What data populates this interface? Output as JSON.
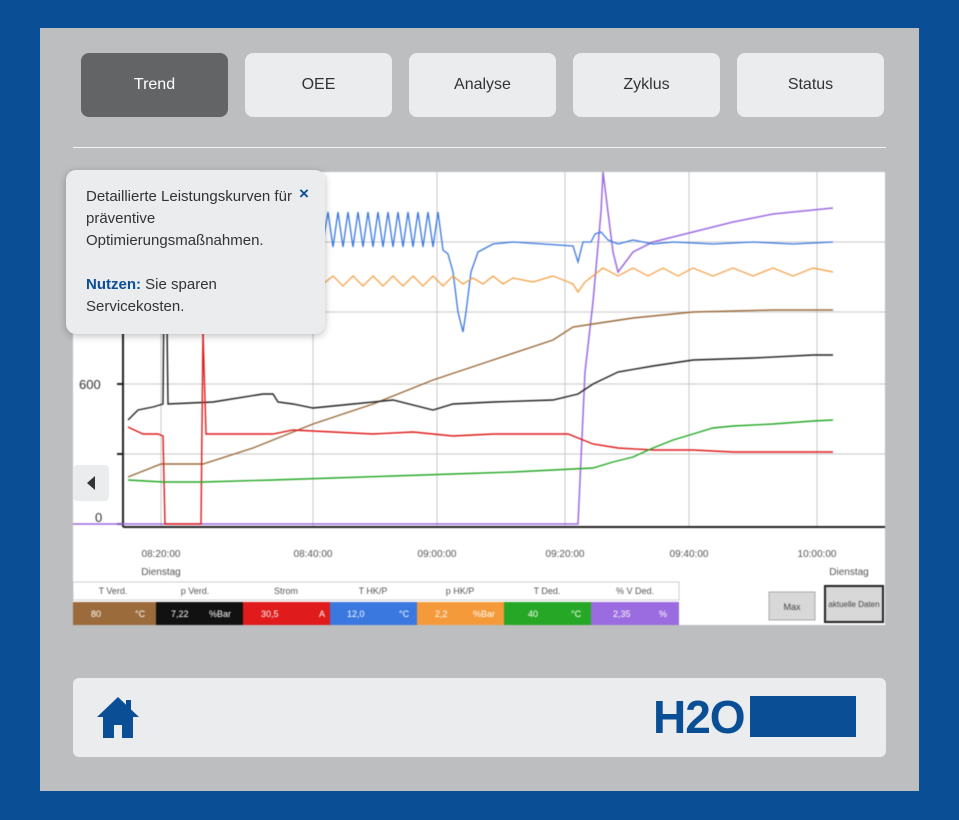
{
  "tabs": [
    {
      "label": "Trend",
      "active": true
    },
    {
      "label": "OEE",
      "active": false
    },
    {
      "label": "Analyse",
      "active": false
    },
    {
      "label": "Zyklus",
      "active": false
    },
    {
      "label": "Status",
      "active": false
    }
  ],
  "tooltip": {
    "text": "Detaillierte Leistungskurven für präventive Optimierungsmaßnahmen.",
    "benefit_label": "Nutzen:",
    "benefit_text": " Sie sparen Servicekosten.",
    "close_icon": "×"
  },
  "trend": {
    "y_ticks": [
      "600",
      "0"
    ],
    "x_ticks": [
      "08:20:00",
      "08:40:00",
      "09:00:00",
      "09:20:00",
      "09:40:00",
      "10:00:00"
    ],
    "x_day_labels": [
      "Dienstag",
      "Dienstag"
    ],
    "legend": [
      {
        "name": "T Verd.",
        "value": "80",
        "unit": "°C",
        "color": "#9b6b3c"
      },
      {
        "name": "p Verd.",
        "value": "7,22",
        "unit": "%Bar",
        "color": "#111111"
      },
      {
        "name": "Strom",
        "value": "30,5",
        "unit": "A",
        "color": "#e01b1b"
      },
      {
        "name": "T HK/P",
        "value": "12,0",
        "unit": "°C",
        "color": "#3a78e0"
      },
      {
        "name": "p HK/P",
        "value": "2,2",
        "unit": "%Bar",
        "color": "#f49a3a"
      },
      {
        "name": "T Ded.",
        "value": "40",
        "unit": "°C",
        "color": "#26a826"
      },
      {
        "name": "% V Ded.",
        "value": "2,35",
        "unit": "%",
        "color": "#9b6be0"
      }
    ],
    "btn_max": "Max",
    "btn_actual": "aktuelle Daten"
  },
  "footer": {
    "home_icon": "home-icon",
    "logo_text": "H2O"
  },
  "colors": {
    "frame": "#0a4f95",
    "panel": "#bcbec0",
    "tab_active": "#636466",
    "tab": "#ebecee"
  }
}
